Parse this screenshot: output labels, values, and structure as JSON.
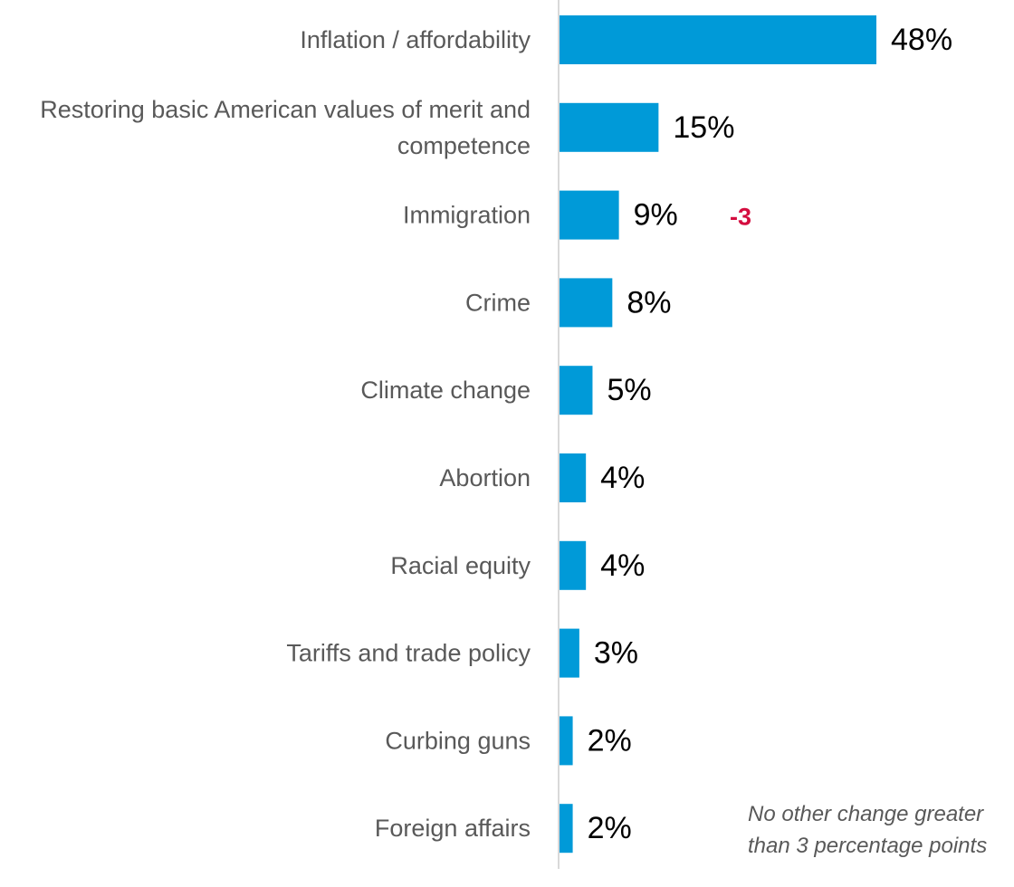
{
  "colors": {
    "bar": "#009ad8",
    "category_text": "#595959",
    "value_text": "#000000",
    "change_text": "#d40d3f",
    "axis": "#d9d9d9"
  },
  "chart_data": {
    "type": "bar",
    "orientation": "horizontal",
    "categories": [
      "Inflation / affordability",
      "Restoring basic American values of merit and competence",
      "Immigration",
      "Crime",
      "Climate change",
      "Abortion",
      "Racial equity",
      "Tariffs and trade policy",
      "Curbing guns",
      "Foreign affairs"
    ],
    "category_lines": [
      [
        "Inflation / affordability"
      ],
      [
        "Restoring basic American values of merit and",
        "competence"
      ],
      [
        "Immigration"
      ],
      [
        "Crime"
      ],
      [
        "Climate change"
      ],
      [
        "Abortion"
      ],
      [
        "Racial equity"
      ],
      [
        "Tariffs and trade policy"
      ],
      [
        "Curbing guns"
      ],
      [
        "Foreign affairs"
      ]
    ],
    "values": [
      48,
      15,
      9,
      8,
      5,
      4,
      4,
      3,
      2,
      2
    ],
    "value_labels": [
      "48%",
      "15%",
      "9%",
      "8%",
      "5%",
      "4%",
      "4%",
      "3%",
      "2%",
      "2%"
    ],
    "changes": [
      "",
      "",
      "-3",
      "",
      "",
      "",
      "",
      "",
      "",
      ""
    ],
    "xlim": [
      0,
      50
    ],
    "grid": false,
    "legend": "none"
  },
  "footnote": {
    "line1": "No other change greater",
    "line2": "than 3 percentage points"
  }
}
